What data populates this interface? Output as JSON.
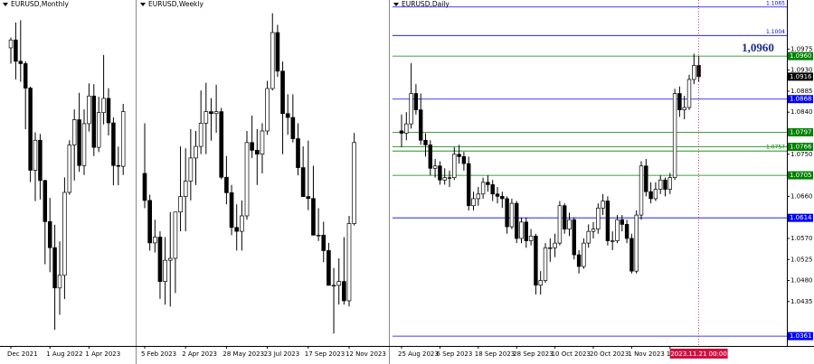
{
  "chart_data": [
    {
      "type": "candlestick",
      "title": "EURUSD,Monthly",
      "categories": [
        "Dec 2021",
        null,
        null,
        null,
        null,
        null,
        null,
        null,
        "1 Aug 2022",
        null,
        null,
        null,
        null,
        null,
        null,
        null,
        "1 Apr 2023",
        null,
        null,
        null,
        null,
        null,
        null,
        null
      ],
      "ohlc": [
        [
          1.132,
          1.1385,
          1.122,
          1.137
        ],
        [
          1.137,
          1.148,
          1.112,
          1.1235
        ],
        [
          1.1235,
          1.1495,
          1.1105,
          1.122
        ],
        [
          1.122,
          1.1235,
          1.0805,
          1.1065
        ],
        [
          1.1065,
          1.1075,
          1.047,
          1.0545
        ],
        [
          1.0545,
          1.0785,
          1.035,
          1.0735
        ],
        [
          1.0735,
          1.0775,
          1.036,
          1.048
        ],
        [
          1.048,
          1.0485,
          0.995,
          1.022
        ],
        [
          1.022,
          1.037,
          0.99,
          1.0055
        ],
        [
          1.0055,
          1.02,
          0.9535,
          0.98
        ],
        [
          0.98,
          1.0095,
          0.963,
          0.988
        ],
        [
          0.988,
          1.05,
          0.973,
          1.0405
        ],
        [
          1.0405,
          1.0735,
          1.039,
          1.0705
        ],
        [
          1.0705,
          1.093,
          1.048,
          1.0865
        ],
        [
          1.0865,
          1.1035,
          1.0535,
          1.0575
        ],
        [
          1.0575,
          1.093,
          1.0515,
          1.084
        ],
        [
          1.084,
          1.1095,
          1.079,
          1.1015
        ],
        [
          1.1015,
          1.109,
          1.0635,
          1.069
        ],
        [
          1.069,
          1.101,
          1.066,
          1.091
        ],
        [
          1.091,
          1.1275,
          1.0835,
          1.1
        ],
        [
          1.1,
          1.1065,
          1.0765,
          1.0845
        ],
        [
          1.0845,
          1.088,
          1.045,
          1.0575
        ],
        [
          1.0575,
          1.0695,
          1.045,
          1.057
        ],
        [
          1.057,
          1.0965,
          1.0515,
          1.0916
        ]
      ],
      "ylim": [
        0.945,
        1.16
      ]
    },
    {
      "type": "candlestick",
      "title": "EURUSD,Weekly",
      "categories": [
        "5 Feb 2023",
        null,
        null,
        null,
        null,
        null,
        null,
        null,
        "2 Apr 2023",
        null,
        null,
        null,
        null,
        null,
        null,
        null,
        "28 May 2023",
        null,
        null,
        null,
        null,
        null,
        null,
        null,
        "23 Jul 2023",
        null,
        null,
        null,
        null,
        null,
        null,
        null,
        "17 Sep 2023",
        null,
        null,
        null,
        null,
        null,
        null,
        null,
        "12 Nov 2023",
        null
      ],
      "ohlc": [
        [
          1.086,
          1.099,
          1.077,
          1.079
        ],
        [
          1.079,
          1.0805,
          1.066,
          1.068
        ],
        [
          1.068,
          1.074,
          1.0655,
          1.0695
        ],
        [
          1.0695,
          1.071,
          1.0535,
          1.058
        ],
        [
          1.058,
          1.0695,
          1.052,
          1.0635
        ],
        [
          1.0635,
          1.076,
          1.0515,
          1.064
        ],
        [
          1.064,
          1.076,
          1.055,
          1.076
        ],
        [
          1.076,
          1.093,
          1.071,
          1.08
        ],
        [
          1.08,
          1.0925,
          1.071,
          1.084
        ],
        [
          1.084,
          1.0975,
          1.079,
          1.09
        ],
        [
          1.09,
          1.097,
          1.083,
          1.093
        ],
        [
          1.093,
          1.1075,
          1.091,
          1.099
        ],
        [
          1.099,
          1.1095,
          1.091,
          1.102
        ],
        [
          1.102,
          1.1055,
          1.0945,
          1.1015
        ],
        [
          1.1015,
          1.109,
          1.0965,
          1.102
        ],
        [
          1.102,
          1.103,
          1.0845,
          1.085
        ],
        [
          1.085,
          1.0905,
          1.078,
          1.081
        ],
        [
          1.081,
          1.083,
          1.07,
          1.072
        ],
        [
          1.072,
          1.078,
          1.066,
          1.071
        ],
        [
          1.071,
          1.079,
          1.066,
          1.075
        ],
        [
          1.075,
          1.097,
          1.074,
          1.094
        ],
        [
          1.094,
          1.101,
          1.09,
          1.092
        ],
        [
          1.092,
          1.0975,
          1.083,
          1.091
        ],
        [
          1.091,
          1.099,
          1.086,
          1.097
        ],
        [
          1.097,
          1.11,
          1.096,
          1.108
        ],
        [
          1.108,
          1.1275,
          1.1075,
          1.1225
        ],
        [
          1.1225,
          1.1245,
          1.111,
          1.1125
        ],
        [
          1.1125,
          1.115,
          1.091,
          1.1015
        ],
        [
          1.1015,
          1.1065,
          1.096,
          1.1005
        ],
        [
          1.1005,
          1.1065,
          1.094,
          1.095
        ],
        [
          1.095,
          1.099,
          1.0855,
          1.0875
        ],
        [
          1.0875,
          1.093,
          1.08,
          1.08
        ],
        [
          1.08,
          1.0945,
          1.0765,
          1.0795
        ],
        [
          1.0795,
          1.088,
          1.07,
          1.07
        ],
        [
          1.07,
          1.077,
          1.0685,
          1.07
        ],
        [
          1.07,
          1.0735,
          1.063,
          1.066
        ],
        [
          1.066,
          1.068,
          1.057,
          1.057
        ],
        [
          1.057,
          1.0615,
          1.0445,
          1.057
        ],
        [
          1.057,
          1.064,
          1.052,
          1.058
        ],
        [
          1.058,
          1.0695,
          1.052,
          1.053
        ],
        [
          1.053,
          1.075,
          1.0515,
          1.073
        ],
        [
          1.073,
          1.0965,
          1.0725,
          1.094
        ]
      ],
      "ylim": [
        1.042,
        1.13
      ]
    },
    {
      "type": "candlestick",
      "title": "EURUSD,Daily",
      "categories": [
        "25 Aug 2023",
        null,
        null,
        null,
        null,
        null,
        null,
        null,
        "6 Sep 2023",
        null,
        null,
        null,
        null,
        null,
        null,
        null,
        "18 Sep 2023",
        null,
        null,
        null,
        null,
        null,
        null,
        null,
        "28 Sep 2023",
        null,
        null,
        null,
        null,
        null,
        null,
        null,
        "10 Oct 2023",
        null,
        null,
        null,
        null,
        null,
        null,
        null,
        "20 Oct 2023",
        null,
        null,
        null,
        null,
        null,
        null,
        null,
        "1 Nov 2023",
        null,
        null,
        null,
        null,
        null,
        null,
        null,
        "13 Nov 2023",
        null,
        null,
        null,
        null,
        null,
        null
      ],
      "ohlc": [
        [
          1.08,
          1.0835,
          1.0765,
          1.0795
        ],
        [
          1.0795,
          1.084,
          1.078,
          1.0815
        ],
        [
          1.0815,
          1.0945,
          1.0805,
          1.088
        ],
        [
          1.088,
          1.09,
          1.0835,
          1.0845
        ],
        [
          1.0845,
          1.088,
          1.077,
          1.078
        ],
        [
          1.078,
          1.0795,
          1.0745,
          1.077
        ],
        [
          1.077,
          1.078,
          1.0705,
          1.072
        ],
        [
          1.072,
          1.074,
          1.07,
          1.0725
        ],
        [
          1.0725,
          1.0735,
          1.0685,
          1.0695
        ],
        [
          1.0695,
          1.072,
          1.0685,
          1.07
        ],
        [
          1.07,
          1.0715,
          1.068,
          1.07
        ],
        [
          1.07,
          1.0765,
          1.0695,
          1.075
        ],
        [
          1.075,
          1.077,
          1.073,
          1.0745
        ],
        [
          1.0745,
          1.0755,
          1.0715,
          1.073
        ],
        [
          1.073,
          1.0745,
          1.063,
          1.064
        ],
        [
          1.064,
          1.067,
          1.063,
          1.0655
        ],
        [
          1.0655,
          1.068,
          1.064,
          1.0665
        ],
        [
          1.0665,
          1.07,
          1.0655,
          1.069
        ],
        [
          1.069,
          1.0705,
          1.067,
          1.0685
        ],
        [
          1.0685,
          1.0695,
          1.065,
          1.0665
        ],
        [
          1.0665,
          1.068,
          1.0645,
          1.066
        ],
        [
          1.066,
          1.067,
          1.0635,
          1.0655
        ],
        [
          1.0655,
          1.066,
          1.058,
          1.0595
        ],
        [
          1.0595,
          1.0655,
          1.059,
          1.0645
        ],
        [
          1.0645,
          1.065,
          1.056,
          1.057
        ],
        [
          1.057,
          1.0615,
          1.056,
          1.0605
        ],
        [
          1.0605,
          1.0615,
          1.055,
          1.0565
        ],
        [
          1.0565,
          1.059,
          1.0555,
          1.0575
        ],
        [
          1.0575,
          1.058,
          1.045,
          1.047
        ],
        [
          1.047,
          1.05,
          1.045,
          1.048
        ],
        [
          1.048,
          1.056,
          1.0475,
          1.055
        ],
        [
          1.055,
          1.057,
          1.052,
          1.055
        ],
        [
          1.055,
          1.058,
          1.053,
          1.056
        ],
        [
          1.056,
          1.065,
          1.0555,
          1.064
        ],
        [
          1.064,
          1.0645,
          1.058,
          1.059
        ],
        [
          1.059,
          1.0625,
          1.0575,
          1.061
        ],
        [
          1.061,
          1.0615,
          1.0525,
          1.0535
        ],
        [
          1.0535,
          1.0545,
          1.0495,
          1.051
        ],
        [
          1.051,
          1.057,
          1.0505,
          1.056
        ],
        [
          1.056,
          1.06,
          1.055,
          1.0585
        ],
        [
          1.0585,
          1.0605,
          1.057,
          1.059
        ],
        [
          1.059,
          1.0645,
          1.058,
          1.0635
        ],
        [
          1.0635,
          1.0665,
          1.062,
          1.065
        ],
        [
          1.065,
          1.066,
          1.0555,
          1.0565
        ],
        [
          1.0565,
          1.0585,
          1.0545,
          1.0565
        ],
        [
          1.0565,
          1.062,
          1.056,
          1.061
        ],
        [
          1.061,
          1.062,
          1.0585,
          1.06
        ],
        [
          1.06,
          1.061,
          1.056,
          1.057
        ],
        [
          1.057,
          1.058,
          1.0495,
          1.05
        ],
        [
          1.05,
          1.063,
          1.0495,
          1.062
        ],
        [
          1.062,
          1.0735,
          1.061,
          1.0725
        ],
        [
          1.0725,
          1.074,
          1.066,
          1.067
        ],
        [
          1.067,
          1.069,
          1.0645,
          1.0655
        ],
        [
          1.0655,
          1.069,
          1.065,
          1.0675
        ],
        [
          1.0675,
          1.0705,
          1.0665,
          1.0695
        ],
        [
          1.0695,
          1.07,
          1.066,
          1.0675
        ],
        [
          1.0675,
          1.071,
          1.0665,
          1.07
        ],
        [
          1.07,
          1.089,
          1.0695,
          1.088
        ],
        [
          1.088,
          1.0895,
          1.083,
          1.0845
        ],
        [
          1.0845,
          1.0875,
          1.0825,
          1.085
        ],
        [
          1.085,
          1.092,
          1.0845,
          1.091
        ],
        [
          1.091,
          1.0965,
          1.09,
          1.094
        ],
        [
          1.094,
          1.096,
          1.0905,
          1.0916
        ]
      ],
      "ylim": [
        1.034,
        1.108
      ],
      "yticks": [
        1.0975,
        {
          "value": 1.093,
          "label": "1.0930"
        },
        1.0885,
        {
          "value": 1.084,
          "label": "1.0840"
        },
        {
          "value": 1.075,
          "label": "1.0750"
        },
        {
          "value": 1.066,
          "label": "1.0660"
        },
        {
          "value": 1.057,
          "label": "1.0570"
        },
        1.0525,
        {
          "value": 1.048,
          "label": "1.0480"
        },
        1.0435
      ],
      "levels": [
        {
          "value": 1.1065,
          "label": "1.1065",
          "color": "#0000ff",
          "boxed": false
        },
        {
          "value": 1.1004,
          "label": "1.1004",
          "color": "#0000ff",
          "boxed": false
        },
        {
          "value": 1.096,
          "label": "1.0960",
          "color": "#008000",
          "boxed": true
        },
        {
          "value": 1.0868,
          "label": "1.0868",
          "color": "#0000ff",
          "boxed": true
        },
        {
          "value": 1.0797,
          "label": "1.0797",
          "color": "#008000",
          "boxed": true
        },
        {
          "value": 1.0766,
          "label": "1.0766",
          "color": "#008000",
          "boxed": true
        },
        {
          "value": 1.0757,
          "label": "1.0757",
          "color": "#008000",
          "boxed": false
        },
        {
          "value": 1.0705,
          "label": "1.0705",
          "color": "#008000",
          "boxed": true
        },
        {
          "value": 1.0614,
          "label": "1.0614",
          "color": "#0000ff",
          "boxed": true
        },
        {
          "value": 1.0361,
          "label": "1.0361",
          "color": "#0000ff",
          "boxed": true
        }
      ],
      "current_price": {
        "value": 1.0916,
        "label": "1.0916"
      },
      "highlight": {
        "value": 1.096,
        "label": "1,0960"
      },
      "cursor_label": "2023.11.21 00:00"
    }
  ]
}
